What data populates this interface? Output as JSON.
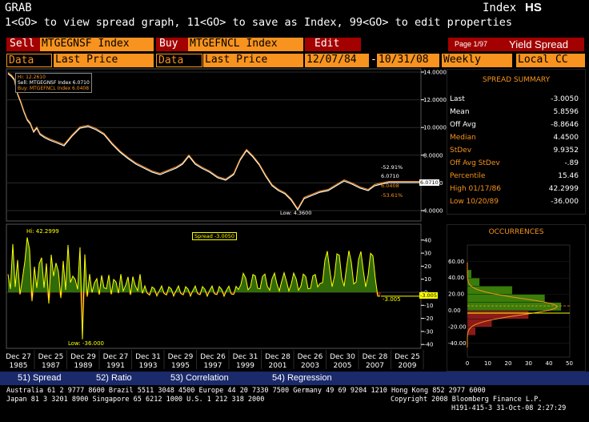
{
  "header": {
    "title": "GRAB",
    "index_label": "Index",
    "index_code": "HS",
    "instructions": "1<GO> to view spread graph, 11<GO> to save as Index, 99<GO> to edit properties"
  },
  "controls": {
    "sell_label": "Sell",
    "sell_value": "MTGEGNSF Index",
    "buy_label": "Buy",
    "buy_value": "MTGEFNCL Index",
    "edit_label": "Edit",
    "page_label": "Page 1/97",
    "screen_title": "Yield Spread",
    "data1_label": "Data",
    "data1_value": "Last Price",
    "data2_label": "Data",
    "data2_value": "Last Price",
    "start_date": "12/07/84",
    "dash": "-",
    "end_date": "10/31/08",
    "period": "Weekly",
    "currency": "Local CC"
  },
  "top_chart": {
    "legend_title": "Hi: 12.2610",
    "legend_sell": "Sell: MTGEGNSF Index  6.0710",
    "legend_buy": "Buy: MTGEFNCL Index  6.0408",
    "low_label": "Low: 4.3600",
    "pct_up": "-52.91%",
    "val_sell": "6.0710",
    "val_buy": "6.0408",
    "pct_down": "-53.61%",
    "right_tag": "6.0710",
    "y_ticks": [
      "14.0000",
      "12.0000",
      "10.0000",
      "8.0000",
      "6.0000",
      "4.0000"
    ]
  },
  "bottom_chart": {
    "hi_label": "Hi: 42.2999",
    "spread_label": "Spread   -3.0050",
    "low_label": "Low: -36.000",
    "end_label": "-3.005",
    "right_tag": "-3.005",
    "y_ticks": [
      "40",
      "30",
      "20",
      "10",
      "0",
      "-10",
      "-20",
      "-30",
      "-40"
    ]
  },
  "x_axis": {
    "top": [
      "Dec 27",
      "Dec 25",
      "Dec 29",
      "Dec 27",
      "Dec 31",
      "Dec 29",
      "Dec 26",
      "Dec 31",
      "Dec 28",
      "Dec 26",
      "Dec 30",
      "Dec 28",
      "Dec 25"
    ],
    "bottom": [
      "1985",
      "1987",
      "1989",
      "1991",
      "1993",
      "1995",
      "1997",
      "1999",
      "2001",
      "2003",
      "2005",
      "2007",
      "2009"
    ]
  },
  "summary": {
    "title": "SPREAD SUMMARY",
    "rows": [
      {
        "label": "Last",
        "value": "-3.0050",
        "color": "#ffffff"
      },
      {
        "label": "Mean",
        "value": "5.8596",
        "color": "#ffffff"
      },
      {
        "label": "Off Avg",
        "value": "-8.8646",
        "color": "#ffffff"
      },
      {
        "label": "Median",
        "value": "4.4500",
        "color": "#f7931e"
      },
      {
        "label": "StDev",
        "value": "9.9352",
        "color": "#f7931e"
      },
      {
        "label": "Off Avg StDev",
        "value": "-.89",
        "color": "#f7931e"
      },
      {
        "label": "Percentile",
        "value": "15.46",
        "color": "#f7931e"
      },
      {
        "label": "High 01/17/86",
        "value": "42.2999",
        "color": "#f7931e"
      },
      {
        "label": "Low 10/20/89",
        "value": "-36.000",
        "color": "#f7931e"
      }
    ]
  },
  "occurrences": {
    "title": "OCCURRENCES",
    "y_ticks": [
      "60.00",
      "40.00",
      "20.00",
      "0.00",
      "-20.00",
      "-40.00"
    ],
    "x_ticks": [
      "0",
      "10",
      "20",
      "30",
      "40",
      "50"
    ]
  },
  "tabs": [
    {
      "num": "51)",
      "label": "Spread"
    },
    {
      "num": "52)",
      "label": "Ratio"
    },
    {
      "num": "53)",
      "label": "Correlation"
    },
    {
      "num": "54)",
      "label": "Regression"
    }
  ],
  "footer": {
    "line1": "Australia 61 2 9777 8600 Brazil 5511 3048 4500 Europe 44 20 7330 7500 Germany 49 69 9204 1210 Hong Kong 852 2977 6000",
    "line2_left": "Japan 81 3 3201 8900          Singapore 65 6212 1000       U.S. 1 212 318 2000",
    "line2_right": "Copyright 2008 Bloomberg Finance L.P.",
    "line3_right": "H191-415-3 31-Oct-08  2:27:29"
  },
  "colors": {
    "accent_orange": "#f7931e",
    "bar_red": "#a30000",
    "series_yellow": "#ffff00",
    "fill_green": "#3a7d0a",
    "fill_red": "#8b1a1a"
  }
}
